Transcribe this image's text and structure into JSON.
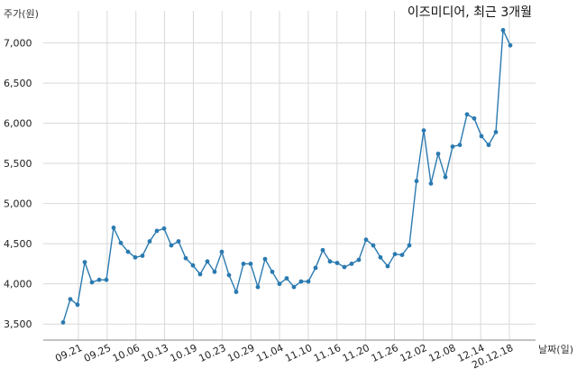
{
  "chart_data": {
    "type": "line",
    "title": "이즈미디어, 최근 3개월",
    "ylabel": "주가(원)",
    "xlabel": "날짜(일)",
    "ylim": [
      3300,
      7400
    ],
    "yticks": [
      3500,
      4000,
      4500,
      5000,
      5500,
      6000,
      6500,
      7000
    ],
    "ytick_labels": [
      "3,500",
      "4,000",
      "4,500",
      "5,000",
      "5,500",
      "6,000",
      "6,500",
      "7,000"
    ],
    "grid": true,
    "line_color": "#2a7ab0",
    "x_tick_labels": [
      "09.21",
      "09.25",
      "10.06",
      "10.13",
      "10.19",
      "10.23",
      "10.29",
      "11.04",
      "11.10",
      "11.16",
      "11.20",
      "11.26",
      "12.02",
      "12.08",
      "12.14",
      "20.12.18"
    ],
    "series": [
      {
        "values": [
          3520,
          3810,
          3740,
          4270,
          4020,
          4050,
          4050,
          4700,
          4510,
          4400,
          4330,
          4350,
          4530,
          4660,
          4690,
          4480,
          4530,
          4320,
          4230,
          4120,
          4280,
          4150,
          4400,
          4110,
          3900,
          4250,
          4250,
          3960,
          4310,
          4150,
          4000,
          4070,
          3960,
          4030,
          4030,
          4200,
          4420,
          4280,
          4260,
          4210,
          4250,
          4300,
          4550,
          4480,
          4330,
          4220,
          4370,
          4360,
          4480,
          5280,
          5910,
          5250,
          5620,
          5330,
          5710,
          5730,
          6110,
          6060,
          5840,
          5730,
          5890,
          7160,
          6970
        ]
      }
    ]
  }
}
